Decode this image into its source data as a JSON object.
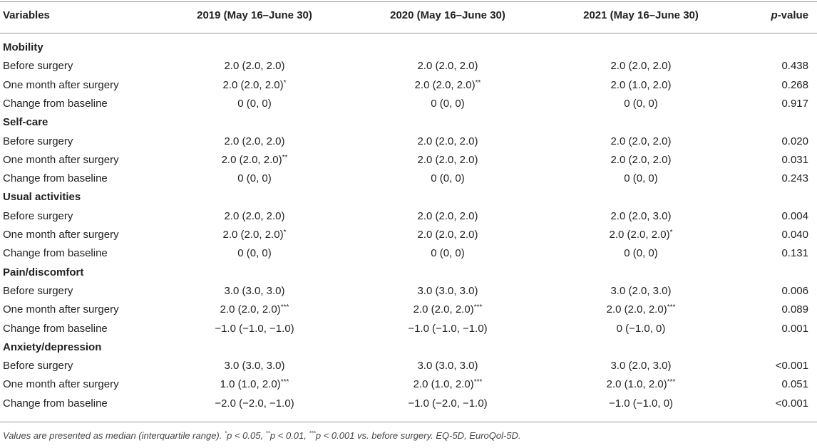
{
  "header": {
    "col0": "Variables",
    "col1": "2019 (May 16–June 30)",
    "col2": "2020 (May 16–June 30)",
    "col3": "2021 (May 16–June 30)",
    "col4_italic": "p",
    "col4_rest": "-value"
  },
  "rows": [
    {
      "type": "section",
      "label": "Mobility"
    },
    {
      "type": "data",
      "label": "Before surgery",
      "v2019": "2.0 (2.0, 2.0)",
      "s2019": "",
      "v2020": "2.0 (2.0, 2.0)",
      "s2020": "",
      "v2021": "2.0 (2.0, 2.0)",
      "s2021": "",
      "p": "0.438"
    },
    {
      "type": "data",
      "label": "One month after surgery",
      "v2019": "2.0 (2.0, 2.0)",
      "s2019": "*",
      "v2020": "2.0 (2.0, 2.0)",
      "s2020": "**",
      "v2021": "2.0 (1.0, 2.0)",
      "s2021": "",
      "p": "0.268"
    },
    {
      "type": "data",
      "label": "Change from baseline",
      "v2019": "0 (0, 0)",
      "s2019": "",
      "v2020": "0 (0, 0)",
      "s2020": "",
      "v2021": "0 (0, 0)",
      "s2021": "",
      "p": "0.917"
    },
    {
      "type": "section",
      "label": "Self-care"
    },
    {
      "type": "data",
      "label": "Before surgery",
      "v2019": "2.0 (2.0, 2.0)",
      "s2019": "",
      "v2020": "2.0 (2.0, 2.0)",
      "s2020": "",
      "v2021": "2.0 (2.0, 2.0)",
      "s2021": "",
      "p": "0.020"
    },
    {
      "type": "data",
      "label": "One month after surgery",
      "v2019": "2.0 (2.0, 2.0)",
      "s2019": "**",
      "v2020": "2.0 (2.0, 2.0)",
      "s2020": "",
      "v2021": "2.0 (2.0, 2.0)",
      "s2021": "",
      "p": "0.031"
    },
    {
      "type": "data",
      "label": "Change from baseline",
      "v2019": "0 (0, 0)",
      "s2019": "",
      "v2020": "0 (0, 0)",
      "s2020": "",
      "v2021": "0 (0, 0)",
      "s2021": "",
      "p": "0.243"
    },
    {
      "type": "section",
      "label": "Usual activities"
    },
    {
      "type": "data",
      "label": "Before surgery",
      "v2019": "2.0 (2.0, 2.0)",
      "s2019": "",
      "v2020": "2.0 (2.0, 2.0)",
      "s2020": "",
      "v2021": "2.0 (2.0, 3.0)",
      "s2021": "",
      "p": "0.004"
    },
    {
      "type": "data",
      "label": "One month after surgery",
      "v2019": "2.0 (2.0, 2.0)",
      "s2019": "*",
      "v2020": "2.0 (2.0, 2.0)",
      "s2020": "",
      "v2021": "2.0 (2.0, 2.0)",
      "s2021": "*",
      "p": "0.040"
    },
    {
      "type": "data",
      "label": "Change from baseline",
      "v2019": "0 (0, 0)",
      "s2019": "",
      "v2020": "0 (0, 0)",
      "s2020": "",
      "v2021": "0 (0, 0)",
      "s2021": "",
      "p": "0.131"
    },
    {
      "type": "section",
      "label": "Pain/discomfort"
    },
    {
      "type": "data",
      "label": "Before surgery",
      "v2019": "3.0 (3.0, 3.0)",
      "s2019": "",
      "v2020": "3.0 (3.0, 3.0)",
      "s2020": "",
      "v2021": "3.0 (2.0, 3.0)",
      "s2021": "",
      "p": "0.006"
    },
    {
      "type": "data",
      "label": "One month after surgery",
      "v2019": "2.0 (2.0, 2.0)",
      "s2019": "***",
      "v2020": "2.0 (2.0, 2.0)",
      "s2020": "***",
      "v2021": "2.0 (2.0, 2.0)",
      "s2021": "***",
      "p": "0.089"
    },
    {
      "type": "data",
      "label": "Change from baseline",
      "v2019": "−1.0 (−1.0, −1.0)",
      "s2019": "",
      "v2020": "−1.0 (−1.0, −1.0)",
      "s2020": "",
      "v2021": "0 (−1.0, 0)",
      "s2021": "",
      "p": "0.001"
    },
    {
      "type": "section",
      "label": "Anxiety/depression"
    },
    {
      "type": "data",
      "label": "Before surgery",
      "v2019": "3.0 (3.0, 3.0)",
      "s2019": "",
      "v2020": "3.0 (3.0, 3.0)",
      "s2020": "",
      "v2021": "3.0 (2.0, 3.0)",
      "s2021": "",
      "p": "<0.001"
    },
    {
      "type": "data",
      "label": "One month after surgery",
      "v2019": "1.0 (1.0, 2.0)",
      "s2019": "***",
      "v2020": "2.0 (1.0, 2.0)",
      "s2020": "***",
      "v2021": "2.0 (1.0, 2.0)",
      "s2021": "***",
      "p": "0.051"
    },
    {
      "type": "data",
      "label": "Change from baseline",
      "v2019": "−2.0 (−2.0, −1.0)",
      "s2019": "",
      "v2020": "−1.0 (−2.0, −1.0)",
      "s2020": "",
      "v2021": "−1.0 (−1.0, 0)",
      "s2021": "",
      "p": "<0.001"
    }
  ],
  "footnote": {
    "part1": "Values are presented as median (interquartile range). ",
    "sup1": "*",
    "part2": "p < 0.05, ",
    "sup2": "**",
    "part3": "p < 0.01, ",
    "sup3": "***",
    "part4": "p < 0.001 vs. before surgery. EQ-5D, EuroQol-5D."
  }
}
